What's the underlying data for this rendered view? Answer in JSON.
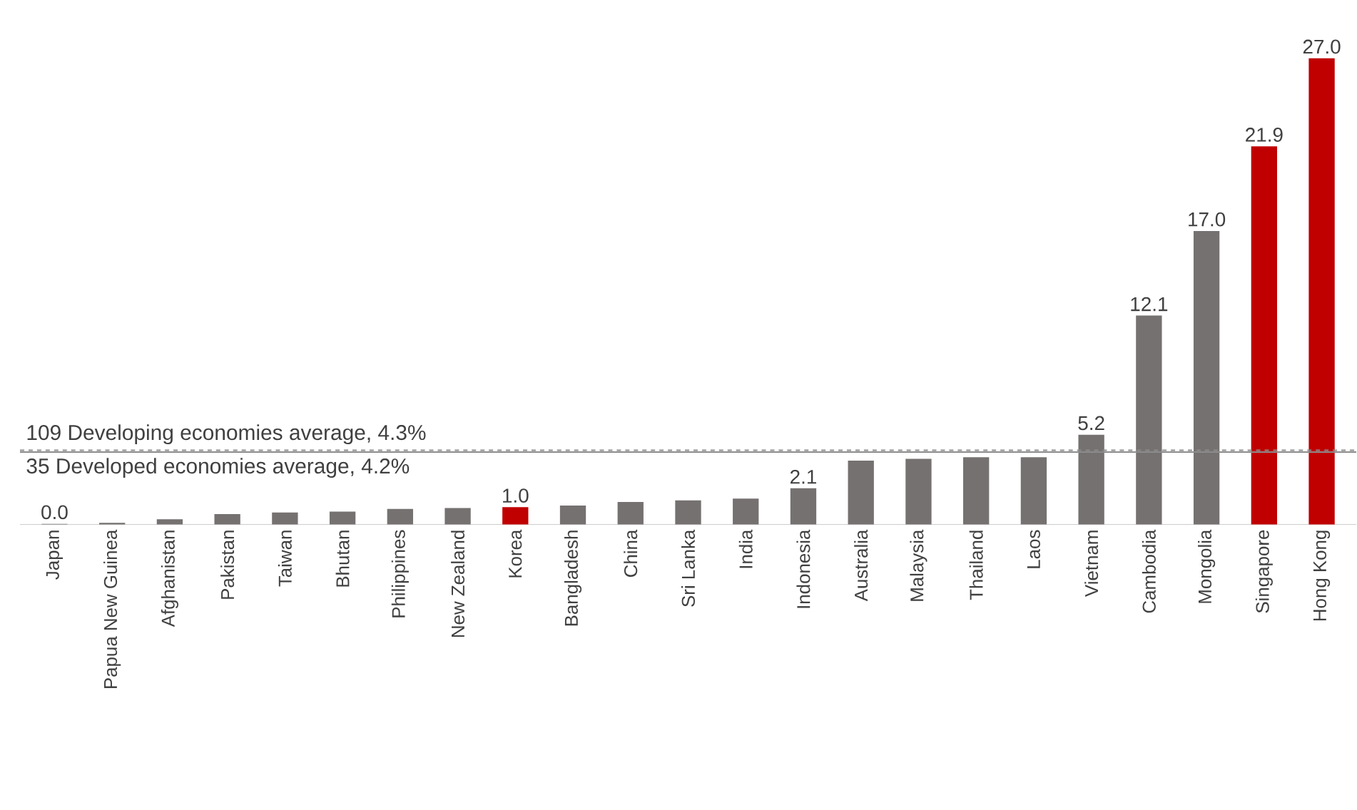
{
  "chart_data": {
    "type": "bar",
    "categories": [
      "Japan",
      "Papua New Guinea",
      "Afghanistan",
      "Pakistan",
      "Taiwan",
      "Bhutan",
      "Philippines",
      "New Zealand",
      "Korea",
      "Bangladesh",
      "China",
      "Sri Lanka",
      "India",
      "Indonesia",
      "Australia",
      "Malaysia",
      "Thailand",
      "Laos",
      "Vietnam",
      "Cambodia",
      "Mongolia",
      "Singapore",
      "Hong Kong"
    ],
    "values": [
      0.04,
      0.1,
      0.3,
      0.6,
      0.7,
      0.75,
      0.9,
      0.95,
      1.0,
      1.1,
      1.3,
      1.4,
      1.5,
      2.1,
      3.7,
      3.8,
      3.9,
      3.9,
      5.2,
      12.1,
      17.0,
      21.9,
      27.0
    ],
    "colors": [
      "#767171",
      "#767171",
      "#767171",
      "#767171",
      "#767171",
      "#767171",
      "#767171",
      "#767171",
      "#c00000",
      "#767171",
      "#767171",
      "#767171",
      "#767171",
      "#767171",
      "#767171",
      "#767171",
      "#767171",
      "#767171",
      "#767171",
      "#767171",
      "#767171",
      "#c00000",
      "#c00000"
    ],
    "value_labels": [
      "0.0",
      null,
      null,
      null,
      null,
      null,
      null,
      null,
      "1.0",
      null,
      null,
      null,
      null,
      "2.1",
      null,
      null,
      null,
      null,
      "5.2",
      "12.1",
      "17.0",
      "21.9",
      "27.0"
    ],
    "ref_lines": [
      {
        "axis": "y",
        "value": 4.3,
        "label": "109 Developing economies average, 4.3%",
        "color": "#8c8c8c",
        "line_style": "dashed"
      },
      {
        "axis": "y",
        "value": 4.2,
        "label": "35 Developed economies average, 4.2%",
        "color": "#8c8c8c",
        "line_style": "solid"
      }
    ]
  }
}
